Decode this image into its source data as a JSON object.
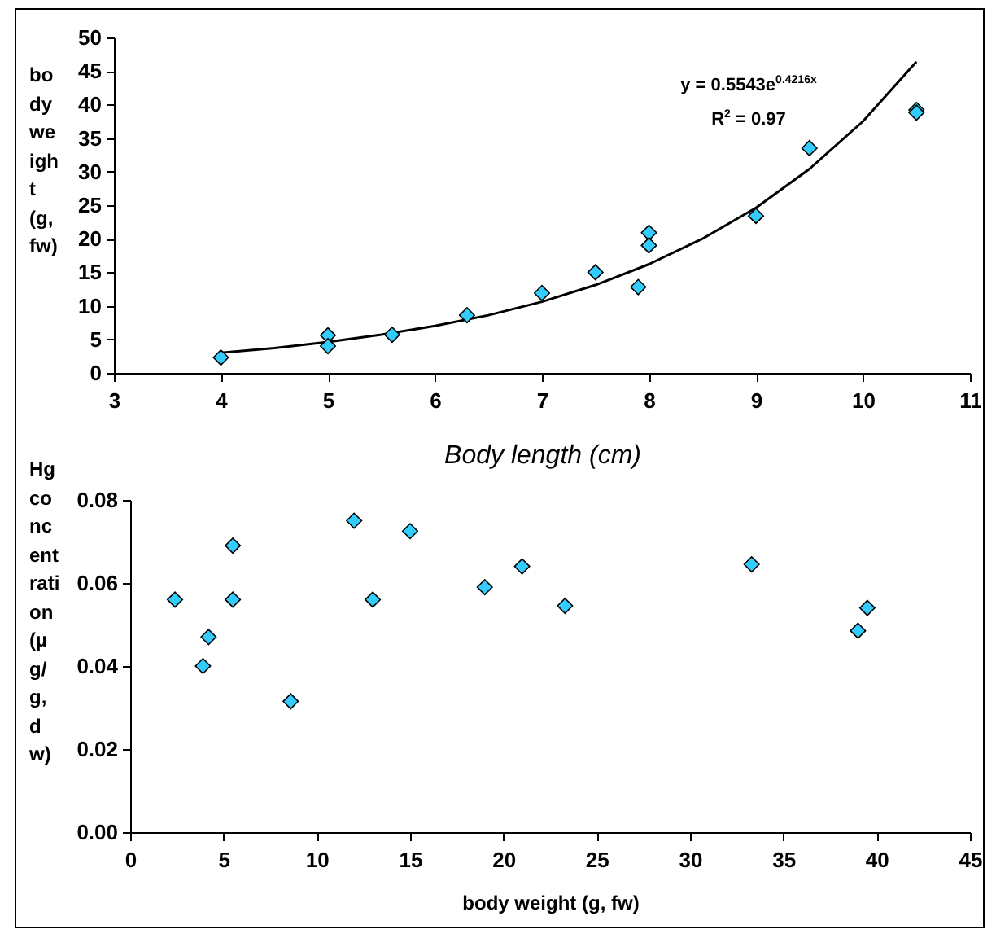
{
  "chart_data": [
    {
      "type": "scatter",
      "xlabel": "Body length (cm)",
      "ylabel": "body weight (g, fw)",
      "annotations": [
        "y = 0.5543e$^{0.4216x}$",
        "R$^{2}$ = 0.97"
      ],
      "grid": false,
      "xlim": [
        3,
        11
      ],
      "xticks": [
        3,
        4,
        5,
        6,
        7,
        8,
        9,
        10,
        11
      ],
      "ylim": [
        0,
        50
      ],
      "yticks": [
        0,
        5,
        10,
        15,
        20,
        25,
        30,
        35,
        40,
        45,
        50
      ],
      "series": [
        {
          "marker": "diamond",
          "color": "#33ccff",
          "x": [
            4,
            5,
            5,
            5.6,
            6.3,
            7,
            7.5,
            7.9,
            8,
            8,
            9,
            9.5,
            10.5,
            10.5
          ],
          "values": [
            2.3,
            5.6,
            4.0,
            5.7,
            8.6,
            11.9,
            15.0,
            12.8,
            20.9,
            19.0,
            23.4,
            33.5,
            39.2,
            38.8
          ]
        },
        {
          "type": "line",
          "color": "#000000",
          "x": [
            4,
            4.5,
            5,
            5.5,
            6,
            6.5,
            7,
            7.5,
            8,
            8.5,
            9,
            9.5,
            10,
            10.5
          ],
          "values": [
            3.0,
            3.7,
            4.6,
            5.7,
            7.0,
            8.6,
            10.6,
            13.1,
            16.2,
            20.0,
            24.6,
            30.4,
            37.5,
            46.4
          ]
        }
      ]
    },
    {
      "type": "scatter",
      "xlabel": "body weight (g, fw)",
      "ylabel": "Hg concentration (µg/g, dw)",
      "marker": "diamond",
      "grid": false,
      "xlim": [
        0,
        45
      ],
      "xticks": [
        0,
        5,
        10,
        15,
        20,
        25,
        30,
        35,
        40,
        45
      ],
      "ylim": [
        0,
        0.08
      ],
      "yticks": [
        {
          "value": 0,
          "label": "0.00"
        },
        {
          "value": 0.02,
          "label": "0.02"
        },
        {
          "value": 0.04,
          "label": "0.04"
        },
        {
          "value": 0.06,
          "label": "0.06"
        },
        {
          "value": 0.08,
          "label": "0.08"
        }
      ],
      "series": [
        {
          "color": "#33ccff",
          "x": [
            2.4,
            3.9,
            4.2,
            5.5,
            5.5,
            8.6,
            12,
            13,
            15,
            19,
            21,
            23.3,
            33.3,
            39,
            39.5
          ],
          "values": [
            0.056,
            0.04,
            0.047,
            0.069,
            0.056,
            0.0315,
            0.075,
            0.056,
            0.0725,
            0.059,
            0.064,
            0.0545,
            0.0645,
            0.0485,
            0.054
          ]
        }
      ]
    }
  ]
}
